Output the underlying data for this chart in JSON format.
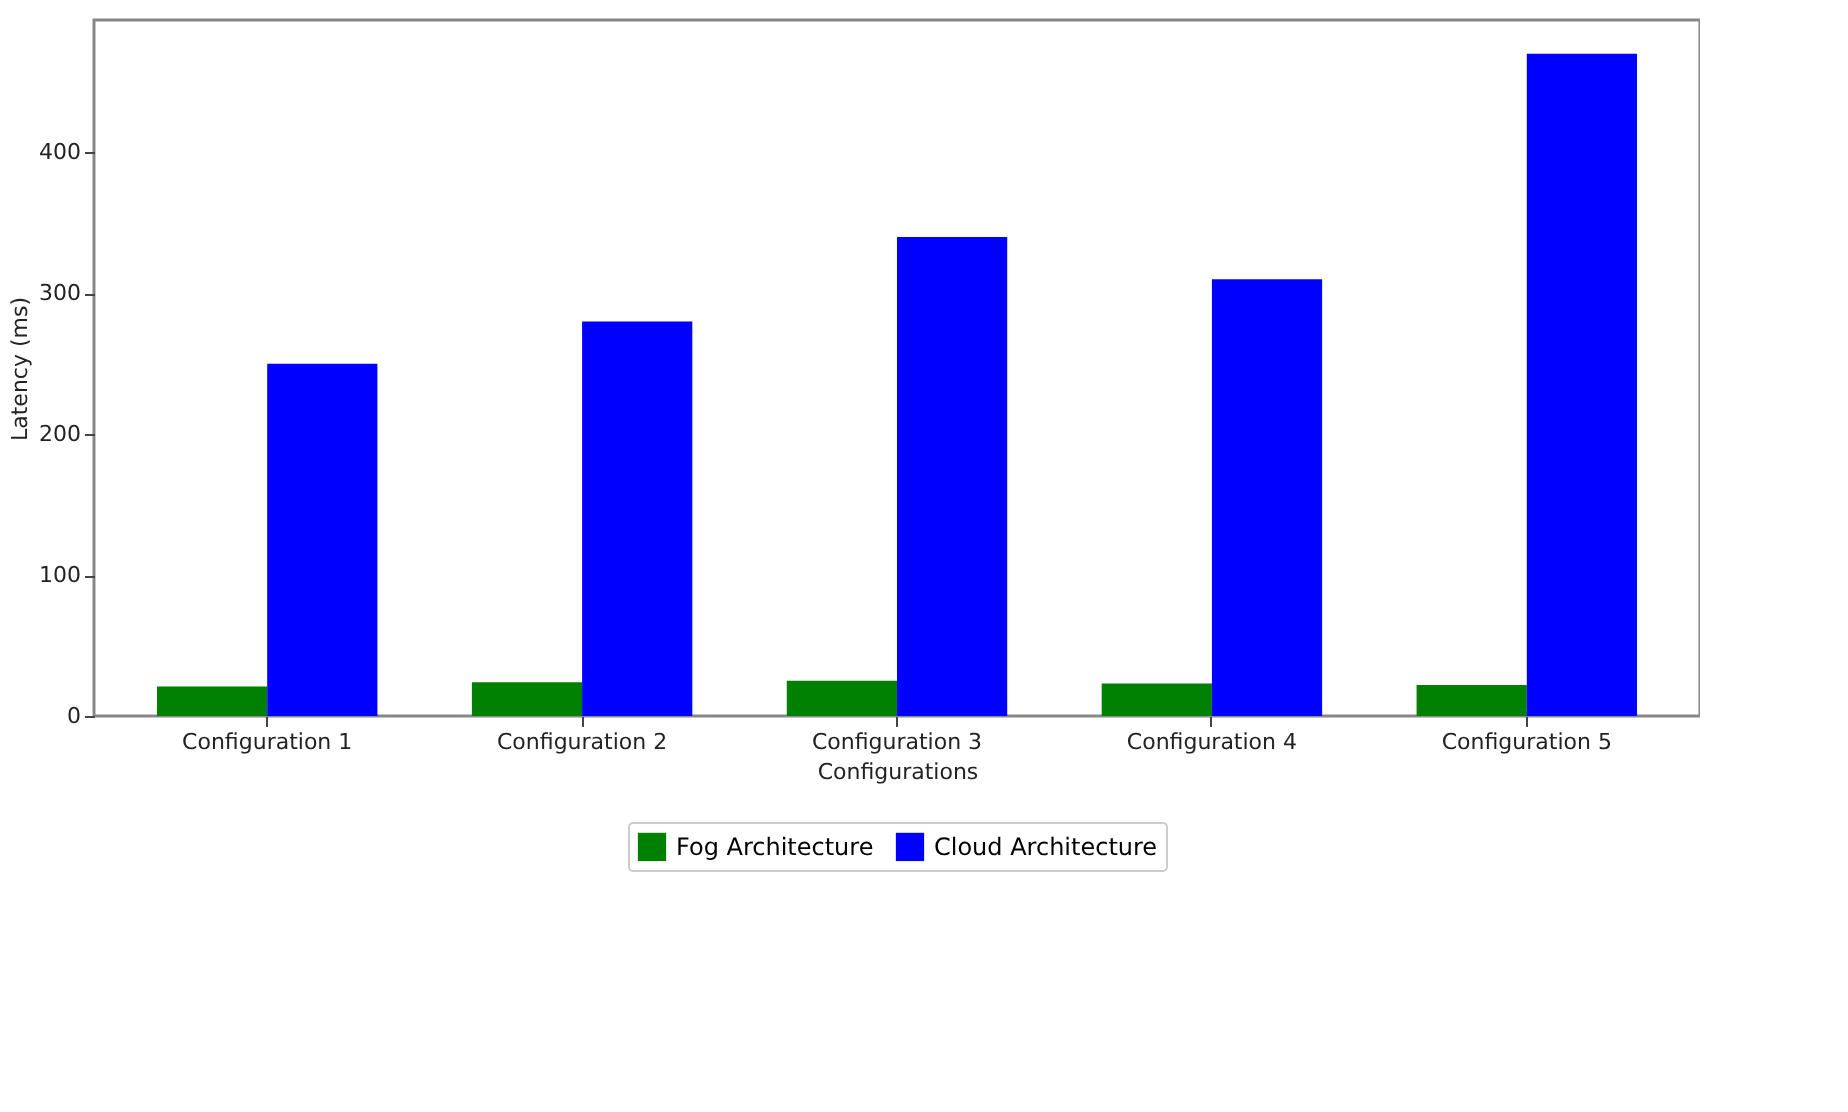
{
  "chart_data": {
    "type": "bar",
    "xlabel": "Configurations",
    "ylabel": "Latency (ms)",
    "categories": [
      "Configuration 1",
      "Configuration 2",
      "Configuration 3",
      "Configuration 4",
      "Configuration 5"
    ],
    "series": [
      {
        "name": "Fog Architecture",
        "color": "#008000",
        "values": [
          21,
          24,
          25,
          23,
          22
        ]
      },
      {
        "name": "Cloud Architecture",
        "color": "#0000ff",
        "values": [
          250,
          280,
          340,
          310,
          470
        ]
      }
    ],
    "ylim": [
      0,
      494
    ],
    "yticks": [
      0,
      100,
      200,
      300,
      400
    ],
    "legend": "bottom"
  }
}
